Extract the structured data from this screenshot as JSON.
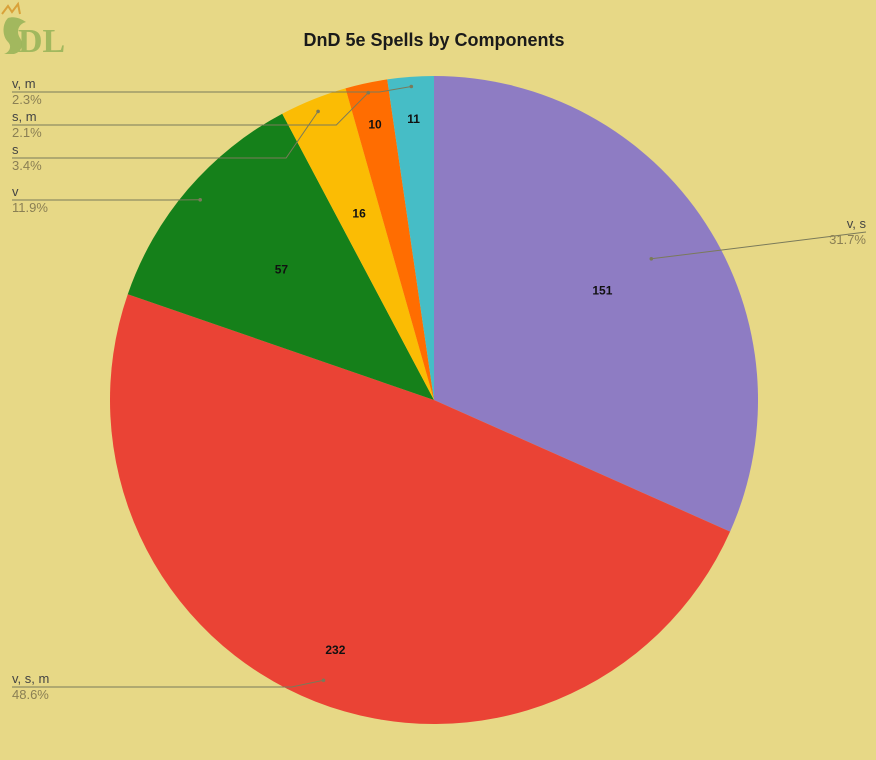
{
  "chart_data": {
    "type": "pie",
    "title": "DnD 5e Spells by Components",
    "slices": [
      {
        "label": "v, s",
        "value": 151,
        "percent": "31.7%",
        "color": "#8e7cc3"
      },
      {
        "label": "v, s, m",
        "value": 232,
        "percent": "48.6%",
        "color": "#ea4335"
      },
      {
        "label": "v",
        "value": 57,
        "percent": "11.9%",
        "color": "#15801a"
      },
      {
        "label": "s",
        "value": 16,
        "percent": "3.4%",
        "color": "#fbbc04"
      },
      {
        "label": "s, m",
        "value": 10,
        "percent": "2.1%",
        "color": "#ff6d01"
      },
      {
        "label": "v, m",
        "value": 11,
        "percent": "2.3%",
        "color": "#46bdc6"
      }
    ]
  },
  "colors": {
    "background": "#e7d886",
    "logo_tint": "#9ab55a"
  },
  "logo": {
    "icon": "dragon-logo-icon",
    "text": "DL"
  }
}
